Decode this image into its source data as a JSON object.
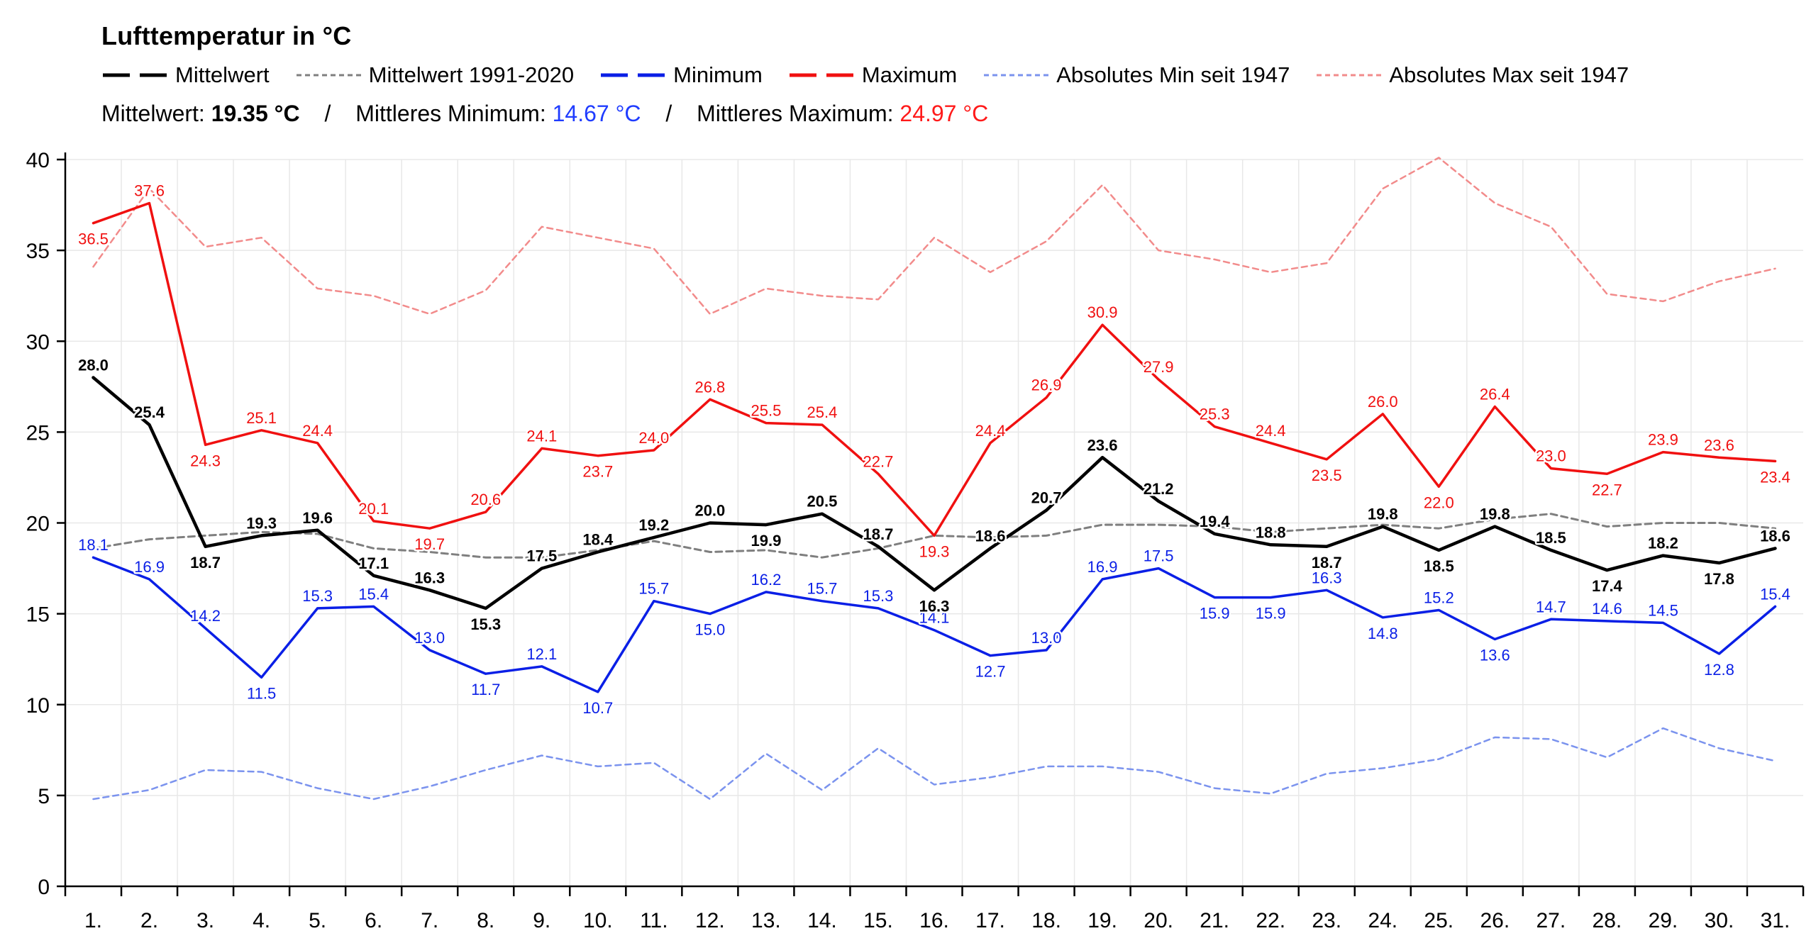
{
  "header": {
    "title": "Lufttemperatur in °C",
    "stats": {
      "mean_label": "Mittelwert:",
      "mean_value": "19.35 °C",
      "sep1": "/",
      "min_label": "Mittleres Minimum:",
      "min_value": "14.67 °C",
      "sep2": "/",
      "max_label": "Mittleres Maximum:",
      "max_value": "24.97 °C"
    }
  },
  "colors": {
    "mean": "#000000",
    "normal": "#7f7f7f",
    "min": "#0a1fe6",
    "max": "#f01010",
    "abs_min": "#7b93ee",
    "abs_max": "#f28b8b",
    "grid": "#e8e8e8"
  },
  "chart_data": {
    "type": "line",
    "title": "Lufttemperatur in °C",
    "xlabel": "",
    "ylabel": "",
    "ylim": [
      0,
      40
    ],
    "yticks": [
      0,
      5,
      10,
      15,
      20,
      25,
      30,
      35,
      40
    ],
    "grid": true,
    "legend_position": "top-left",
    "categories": [
      "1.",
      "2.",
      "3.",
      "4.",
      "5.",
      "6.",
      "7.",
      "8.",
      "9.",
      "10.",
      "11.",
      "12.",
      "13.",
      "14.",
      "15.",
      "16.",
      "17.",
      "18.",
      "19.",
      "20.",
      "21.",
      "22.",
      "23.",
      "24.",
      "25.",
      "26.",
      "27.",
      "28.",
      "29.",
      "30.",
      "31."
    ],
    "series": [
      {
        "name": "Mittelwert",
        "key": "mean",
        "style": "solid-bold",
        "labeled": true,
        "values": [
          28.0,
          25.4,
          18.7,
          19.3,
          19.6,
          17.1,
          16.3,
          15.3,
          17.5,
          18.4,
          19.2,
          20.0,
          19.9,
          20.5,
          18.7,
          16.3,
          18.6,
          20.7,
          23.6,
          21.2,
          19.4,
          18.8,
          18.7,
          19.8,
          18.5,
          19.8,
          18.5,
          17.4,
          18.2,
          17.8,
          18.6
        ]
      },
      {
        "name": "Mittelwert 1991-2020",
        "key": "normal",
        "style": "dashed",
        "labeled": false,
        "values": [
          18.6,
          19.1,
          19.3,
          19.5,
          19.4,
          18.6,
          18.4,
          18.1,
          18.1,
          18.5,
          19.0,
          18.4,
          18.5,
          18.1,
          18.6,
          19.3,
          19.2,
          19.3,
          19.9,
          19.9,
          19.8,
          19.5,
          19.7,
          19.9,
          19.7,
          20.2,
          20.5,
          19.8,
          20.0,
          20.0,
          19.7
        ]
      },
      {
        "name": "Minimum",
        "key": "min",
        "style": "solid",
        "labeled": true,
        "values": [
          18.1,
          16.9,
          14.2,
          11.5,
          15.3,
          15.4,
          13.0,
          11.7,
          12.1,
          10.7,
          15.7,
          15.0,
          16.2,
          15.7,
          15.3,
          14.1,
          12.7,
          13.0,
          16.9,
          17.5,
          15.9,
          15.9,
          16.3,
          14.8,
          15.2,
          13.6,
          14.7,
          14.6,
          14.5,
          12.8,
          15.4
        ]
      },
      {
        "name": "Maximum",
        "key": "max",
        "style": "solid",
        "labeled": true,
        "values": [
          36.5,
          37.6,
          24.3,
          25.1,
          24.4,
          20.1,
          19.7,
          20.6,
          24.1,
          23.7,
          24.0,
          26.8,
          25.5,
          25.4,
          22.7,
          19.3,
          24.4,
          26.9,
          30.9,
          27.9,
          25.3,
          24.4,
          23.5,
          26.0,
          22.0,
          26.4,
          23.0,
          22.7,
          23.9,
          23.6,
          23.4
        ]
      },
      {
        "name": "Absolutes Min seit 1947",
        "key": "abs_min",
        "style": "dashed",
        "labeled": false,
        "values": [
          4.8,
          5.3,
          6.4,
          6.3,
          5.4,
          4.8,
          5.5,
          6.4,
          7.2,
          6.6,
          6.8,
          4.8,
          7.3,
          5.3,
          7.6,
          5.6,
          6.0,
          6.6,
          6.6,
          6.3,
          5.4,
          5.1,
          6.2,
          6.5,
          7.0,
          8.2,
          8.1,
          7.1,
          8.7,
          7.6,
          6.9
        ]
      },
      {
        "name": "Absolutes Max seit 1947",
        "key": "abs_max",
        "style": "dashed",
        "labeled": false,
        "values": [
          34.1,
          38.4,
          35.2,
          35.7,
          32.9,
          32.5,
          31.5,
          32.8,
          36.3,
          35.7,
          35.1,
          31.5,
          32.9,
          32.5,
          32.3,
          35.7,
          33.8,
          35.5,
          38.6,
          35.0,
          34.5,
          33.8,
          34.3,
          38.4,
          40.1,
          37.6,
          36.3,
          32.6,
          32.2,
          33.3,
          34.0
        ]
      }
    ]
  }
}
